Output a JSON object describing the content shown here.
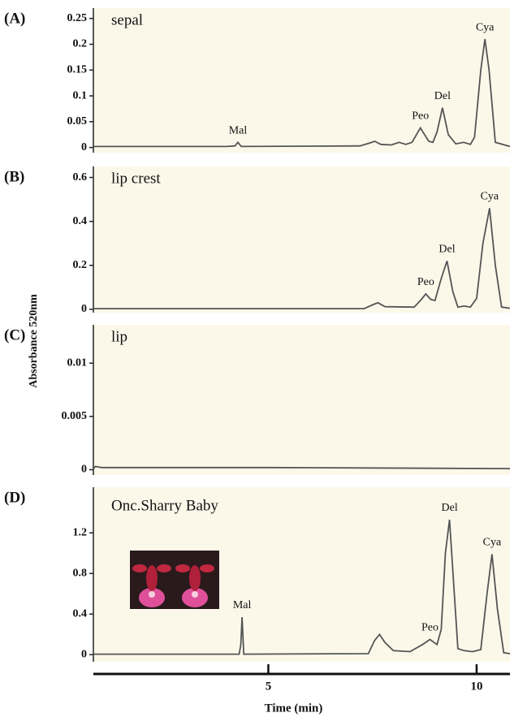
{
  "y_axis_label": "Absorbance  520nm",
  "chart_data": [
    {
      "type": "line",
      "label": "(A)",
      "title": "sepal",
      "color": "#555555",
      "xlim": [
        0.8,
        10.8
      ],
      "ylim": [
        -0.01,
        0.27
      ],
      "yticks": [
        0,
        0.05,
        0.1,
        0.15,
        0.2,
        0.25
      ],
      "x": [
        0.8,
        4.0,
        4.2,
        4.27,
        4.35,
        7.2,
        7.45,
        7.55,
        7.7,
        7.95,
        8.14,
        8.3,
        8.45,
        8.65,
        8.85,
        8.95,
        9.05,
        9.18,
        9.32,
        9.5,
        9.69,
        9.85,
        9.95,
        10.1,
        10.2,
        10.3,
        10.45,
        10.8
      ],
      "values": [
        0.002,
        0.002,
        0.003,
        0.01,
        0.002,
        0.003,
        0.009,
        0.012,
        0.006,
        0.005,
        0.01,
        0.006,
        0.01,
        0.038,
        0.012,
        0.01,
        0.03,
        0.077,
        0.025,
        0.007,
        0.01,
        0.006,
        0.02,
        0.15,
        0.21,
        0.15,
        0.01,
        0.002
      ],
      "annotations": [
        {
          "text": "Mal",
          "x": 4.27
        },
        {
          "text": "Peo",
          "x": 8.65
        },
        {
          "text": "Del",
          "x": 9.18
        },
        {
          "text": "Cya",
          "x": 10.2
        }
      ]
    },
    {
      "type": "line",
      "label": "(B)",
      "title": "lip crest",
      "color": "#555555",
      "xlim": [
        0.8,
        10.8
      ],
      "ylim": [
        -0.015,
        0.65
      ],
      "yticks": [
        0,
        0.2,
        0.4,
        0.6
      ],
      "x": [
        0.8,
        7.3,
        7.5,
        7.63,
        7.8,
        8.5,
        8.65,
        8.78,
        8.9,
        9.0,
        9.15,
        9.29,
        9.43,
        9.55,
        9.7,
        9.85,
        10.0,
        10.15,
        10.31,
        10.45,
        10.6,
        10.8
      ],
      "values": [
        0.003,
        0.003,
        0.02,
        0.03,
        0.012,
        0.01,
        0.04,
        0.07,
        0.045,
        0.04,
        0.14,
        0.22,
        0.08,
        0.01,
        0.015,
        0.01,
        0.05,
        0.3,
        0.46,
        0.2,
        0.01,
        0.005
      ],
      "annotations": [
        {
          "text": "Peo",
          "x": 8.78
        },
        {
          "text": "Del",
          "x": 9.29
        },
        {
          "text": "Cya",
          "x": 10.31
        }
      ]
    },
    {
      "type": "line",
      "label": "(C)",
      "title": "lip",
      "color": "#555555",
      "xlim": [
        0.8,
        10.8
      ],
      "ylim": [
        -0.0005,
        0.0136
      ],
      "yticks": [
        0,
        0.005,
        0.01
      ],
      "x": [
        0.8,
        0.85,
        1.0,
        5.0,
        10.8
      ],
      "values": [
        0.0001,
        0.0003,
        0.0002,
        0.0002,
        0.0001
      ],
      "annotations": []
    },
    {
      "type": "line",
      "label": "(D)",
      "title": "Onc.Sharry Baby",
      "color": "#555555",
      "xlim": [
        0.8,
        10.8
      ],
      "ylim": [
        -0.07,
        1.65
      ],
      "yticks": [
        0,
        0.4,
        0.8,
        1.2
      ],
      "x": [
        0.8,
        4.3,
        4.34,
        4.37,
        4.41,
        7.4,
        7.55,
        7.67,
        7.8,
        8.0,
        8.4,
        8.7,
        8.88,
        9.05,
        9.15,
        9.25,
        9.35,
        9.45,
        9.55,
        9.7,
        9.9,
        10.1,
        10.25,
        10.37,
        10.5,
        10.65,
        10.8
      ],
      "values": [
        0.005,
        0.005,
        0.1,
        0.37,
        0.005,
        0.01,
        0.14,
        0.2,
        0.12,
        0.04,
        0.03,
        0.1,
        0.15,
        0.1,
        0.25,
        1.0,
        1.33,
        0.7,
        0.06,
        0.04,
        0.03,
        0.05,
        0.6,
        0.99,
        0.45,
        0.02,
        0.01
      ],
      "annotations": [
        {
          "text": "Mal",
          "x": 4.37
        },
        {
          "text": "Peo",
          "x": 8.88
        },
        {
          "text": "Del",
          "x": 9.35
        },
        {
          "text": "Cya",
          "x": 10.37
        }
      ],
      "xlabel": "Time (min)",
      "xticks": [
        5,
        10
      ]
    }
  ]
}
